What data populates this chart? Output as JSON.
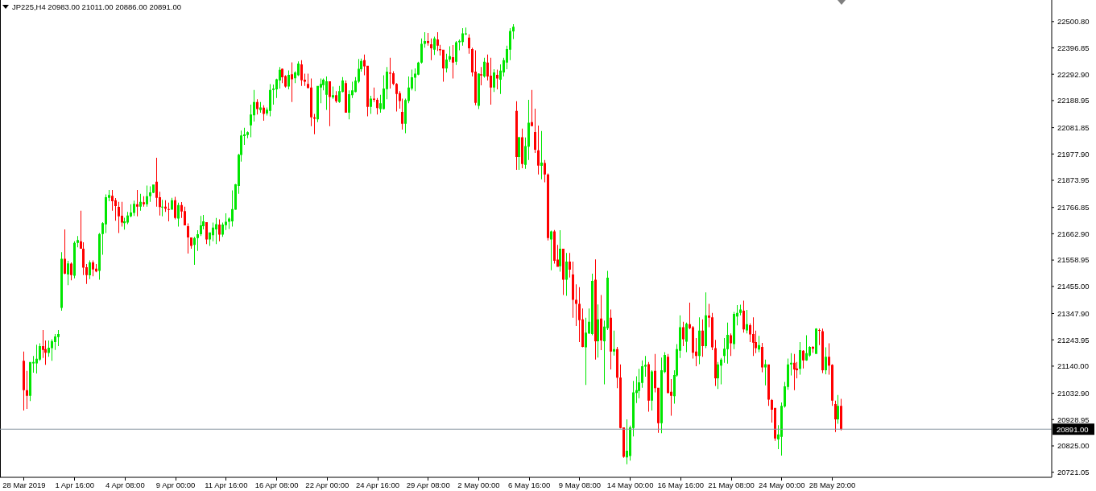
{
  "chart_data": {
    "type": "candlestick",
    "title": "JP225,H4 20983.00 21011.00 20886.00 20891.00",
    "categories": [
      "28 Mar 2019",
      null,
      null,
      null,
      null,
      null,
      null,
      null,
      null,
      null,
      null,
      null,
      null,
      null,
      null,
      null,
      "1 Apr 16:00",
      null,
      null,
      null,
      null,
      null,
      null,
      null,
      null,
      null,
      null,
      null,
      null,
      null,
      null,
      null,
      "4 Apr 08:00",
      null,
      null,
      null,
      null,
      null,
      null,
      null,
      null,
      null,
      null,
      null,
      null,
      null,
      null,
      null,
      "9 Apr 00:00",
      null,
      null,
      null,
      null,
      null,
      null,
      null,
      null,
      null,
      null,
      null,
      null,
      null,
      null,
      null,
      "11 Apr 16:00",
      null,
      null,
      null,
      null,
      null,
      null,
      null,
      null,
      null,
      null,
      null,
      null,
      null,
      null,
      null,
      "16 Apr 08:00",
      null,
      null,
      null,
      null,
      null,
      null,
      null,
      null,
      null,
      null,
      null,
      null,
      null,
      null,
      null,
      "22 Apr 00:00",
      null,
      null,
      null,
      null,
      null,
      null,
      null,
      null,
      null,
      null,
      null,
      null,
      null,
      null,
      null,
      "24 Apr 16:00",
      null,
      null,
      null,
      null,
      null,
      null,
      null,
      null,
      null,
      null,
      null,
      null,
      null,
      null,
      null,
      "29 Apr 08:00",
      null,
      null,
      null,
      null,
      null,
      null,
      null,
      null,
      null,
      null,
      null,
      null,
      null,
      null,
      null,
      "2 May 00:00",
      null,
      null,
      null,
      null,
      null,
      null,
      null,
      null,
      null,
      null,
      null,
      null,
      null,
      null,
      null,
      "6 May 16:00",
      null,
      null,
      null,
      null,
      null,
      null,
      null,
      null,
      null,
      null,
      null,
      null,
      null,
      null,
      null,
      "9 May 08:00",
      null,
      null,
      null,
      null,
      null,
      null,
      null,
      null,
      null,
      null,
      null,
      null,
      null,
      null,
      null,
      "14 May 00:00",
      null,
      null,
      null,
      null,
      null,
      null,
      null,
      null,
      null,
      null,
      null,
      null,
      null,
      null,
      null,
      "16 May 16:00",
      null,
      null,
      null,
      null,
      null,
      null,
      null,
      null,
      null,
      null,
      null,
      null,
      null,
      null,
      null,
      "21 May 08:00",
      null,
      null,
      null,
      null,
      null,
      null,
      null,
      null,
      null,
      null,
      null,
      null,
      null,
      null,
      null,
      "24 May 00:00",
      null,
      null,
      null,
      null,
      null,
      null,
      null,
      null,
      null,
      null,
      null,
      null,
      null,
      null,
      null,
      "28 May 20:00",
      null,
      null,
      null,
      null,
      null,
      null,
      null,
      null,
      null,
      null,
      null,
      null,
      null,
      null,
      null,
      null,
      null,
      null,
      null,
      null,
      null,
      null,
      null,
      null,
      null,
      null,
      null,
      null,
      null,
      null,
      null,
      null,
      null,
      null,
      null,
      null,
      null,
      null,
      null,
      null,
      null,
      null,
      null,
      null,
      null,
      null,
      null,
      null,
      null,
      null,
      null,
      null,
      null,
      null,
      null,
      null,
      null,
      null,
      null,
      null,
      null,
      null,
      null,
      null,
      null,
      null,
      null,
      null,
      null
    ],
    "ohlc": [
      [
        21161,
        21198,
        20965,
        21045
      ],
      [
        21045,
        21121,
        20971,
        21023
      ],
      [
        21023,
        21156,
        21002,
        21156
      ],
      [
        21151,
        21180,
        21114,
        21156
      ],
      [
        21151,
        21225,
        21111,
        21169
      ],
      [
        21166,
        21230,
        21161,
        21219
      ],
      [
        21219,
        21283,
        21172,
        21204
      ],
      [
        21207,
        21241,
        21145,
        21193
      ],
      [
        21192,
        21241,
        21177,
        21213
      ],
      [
        21211,
        21246,
        21161,
        21239
      ],
      [
        21235,
        21267,
        21204,
        21257
      ],
      [
        21255,
        21283,
        21219,
        21267
      ],
      [
        21370,
        21590,
        21359,
        21564
      ],
      [
        21564,
        21680,
        21503,
        21505
      ],
      [
        21502,
        21556,
        21460,
        21546
      ],
      [
        21545,
        21550,
        21479,
        21500
      ],
      [
        21497,
        21633,
        21487,
        21627
      ],
      [
        21627,
        21654,
        21609,
        21638
      ],
      [
        21633,
        21754,
        21604,
        21604
      ],
      [
        21604,
        21629,
        21500,
        21529
      ],
      [
        21531,
        21543,
        21465,
        21500
      ],
      [
        21499,
        21558,
        21484,
        21550
      ],
      [
        21550,
        21558,
        21495,
        21522
      ],
      [
        21525,
        21543,
        21511,
        21514
      ],
      [
        21516,
        21666,
        21481,
        21662
      ],
      [
        21662,
        21709,
        21580,
        21705
      ],
      [
        21700,
        21818,
        21666,
        21807
      ],
      [
        21805,
        21836,
        21791,
        21816
      ],
      [
        21813,
        21836,
        21754,
        21791
      ],
      [
        21795,
        21804,
        21714,
        21772
      ],
      [
        21769,
        21789,
        21666,
        21732
      ],
      [
        21734,
        21789,
        21691,
        21707
      ],
      [
        21705,
        21726,
        21679,
        21712
      ],
      [
        21707,
        21749,
        21701,
        21735
      ],
      [
        21732,
        21779,
        21728,
        21747
      ],
      [
        21745,
        21794,
        21733,
        21781
      ],
      [
        21779,
        21836,
        21732,
        21770
      ],
      [
        21770,
        21821,
        21754,
        21789
      ],
      [
        21787,
        21811,
        21770,
        21779
      ],
      [
        21779,
        21853,
        21770,
        21811
      ],
      [
        21811,
        21850,
        21789,
        21826
      ],
      [
        21825,
        21857,
        21823,
        21857
      ],
      [
        21868,
        21963,
        21770,
        21805
      ],
      [
        21807,
        21829,
        21735,
        21768
      ],
      [
        21767,
        21797,
        21732,
        21770
      ],
      [
        21770,
        21795,
        21749,
        21762
      ],
      [
        21760,
        21786,
        21712,
        21758
      ],
      [
        21758,
        21805,
        21758,
        21795
      ],
      [
        21795,
        21809,
        21720,
        21725
      ],
      [
        21723,
        21786,
        21691,
        21776
      ],
      [
        21776,
        21788,
        21725,
        21751
      ],
      [
        21752,
        21770,
        21696,
        21696
      ],
      [
        21693,
        21704,
        21585,
        21648
      ],
      [
        21648,
        21648,
        21604,
        21615
      ],
      [
        21619,
        21651,
        21540,
        21646
      ],
      [
        21646,
        21677,
        21595,
        21661
      ],
      [
        21661,
        21733,
        21654,
        21696
      ],
      [
        21693,
        21737,
        21680,
        21712
      ],
      [
        21709,
        21709,
        21622,
        21640
      ],
      [
        21640,
        21668,
        21615,
        21668
      ],
      [
        21657,
        21707,
        21633,
        21687
      ],
      [
        21680,
        21725,
        21622,
        21701
      ],
      [
        21699,
        21720,
        21633,
        21659
      ],
      [
        21659,
        21707,
        21651,
        21699
      ],
      [
        21697,
        21744,
        21678,
        21710
      ],
      [
        21710,
        21728,
        21682,
        21723
      ],
      [
        21712,
        21834,
        21691,
        21760
      ],
      [
        21758,
        21860,
        21757,
        21858
      ],
      [
        21852,
        21979,
        21821,
        21975
      ],
      [
        21974,
        22070,
        21948,
        22051
      ],
      [
        22049,
        22081,
        22014,
        22055
      ],
      [
        22053,
        22067,
        22040,
        22064
      ],
      [
        22091,
        22173,
        22044,
        22134
      ],
      [
        22131,
        22231,
        22106,
        22183
      ],
      [
        22183,
        22194,
        22134,
        22155
      ],
      [
        22151,
        22183,
        22141,
        22162
      ],
      [
        22161,
        22170,
        22109,
        22136
      ],
      [
        22138,
        22162,
        22130,
        22153
      ],
      [
        22148,
        22254,
        22127,
        22231
      ],
      [
        22231,
        22252,
        22173,
        22236
      ],
      [
        22233,
        22275,
        22199,
        22273
      ],
      [
        22268,
        22321,
        22236,
        22310
      ],
      [
        22314,
        22316,
        22258,
        22281
      ],
      [
        22286,
        22289,
        22240,
        22244
      ],
      [
        22244,
        22308,
        22233,
        22290
      ],
      [
        22293,
        22340,
        22183,
        22273
      ],
      [
        22277,
        22305,
        22258,
        22300
      ],
      [
        22289,
        22344,
        22286,
        22335
      ],
      [
        22332,
        22348,
        22247,
        22269
      ],
      [
        22271,
        22295,
        22247,
        22263
      ],
      [
        22255,
        22295,
        22236,
        22239
      ],
      [
        22240,
        22276,
        22088,
        22123
      ],
      [
        22123,
        22136,
        22056,
        22117
      ],
      [
        22115,
        22247,
        22104,
        22247
      ],
      [
        22240,
        22276,
        22178,
        22255
      ],
      [
        22250,
        22276,
        22229,
        22271
      ],
      [
        22212,
        22284,
        22152,
        22265
      ],
      [
        22265,
        22265,
        22088,
        22203
      ],
      [
        22201,
        22244,
        22196,
        22210
      ],
      [
        22210,
        22226,
        22180,
        22186
      ],
      [
        22183,
        22247,
        22180,
        22226
      ],
      [
        22223,
        22282,
        22221,
        22268
      ],
      [
        22258,
        22268,
        22141,
        22141
      ],
      [
        22141,
        22229,
        22115,
        22214
      ],
      [
        22210,
        22263,
        22199,
        22229
      ],
      [
        22223,
        22282,
        22221,
        22267
      ],
      [
        22263,
        22353,
        22258,
        22314
      ],
      [
        22313,
        22355,
        22303,
        22345
      ],
      [
        22348,
        22371,
        22289,
        22324
      ],
      [
        22326,
        22326,
        22127,
        22164
      ],
      [
        22164,
        22208,
        22136,
        22197
      ],
      [
        22197,
        22240,
        22183,
        22192
      ],
      [
        22192,
        22199,
        22134,
        22159
      ],
      [
        22155,
        22212,
        22141,
        22178
      ],
      [
        22155,
        22289,
        22154,
        22236
      ],
      [
        22234,
        22321,
        22194,
        22303
      ],
      [
        22299,
        22358,
        22236,
        22295
      ],
      [
        22297,
        22305,
        22250,
        22255
      ],
      [
        22255,
        22258,
        22146,
        22215
      ],
      [
        22218,
        22226,
        22157,
        22187
      ],
      [
        22144,
        22197,
        22074,
        22097
      ],
      [
        22097,
        22197,
        22060,
        22191
      ],
      [
        22187,
        22284,
        22178,
        22240
      ],
      [
        22236,
        22311,
        22229,
        22281
      ],
      [
        22279,
        22316,
        22226,
        22295
      ],
      [
        22291,
        22342,
        22289,
        22339
      ],
      [
        22339,
        22434,
        22335,
        22413
      ],
      [
        22413,
        22459,
        22398,
        22424
      ],
      [
        22424,
        22456,
        22406,
        22416
      ],
      [
        22411,
        22434,
        22348,
        22395
      ],
      [
        22390,
        22441,
        22369,
        22434
      ],
      [
        22430,
        22459,
        22385,
        22406
      ],
      [
        22392,
        22409,
        22367,
        22387
      ],
      [
        22390,
        22390,
        22263,
        22316
      ],
      [
        22316,
        22374,
        22300,
        22351
      ],
      [
        22351,
        22403,
        22342,
        22364
      ],
      [
        22360,
        22408,
        22276,
        22339
      ],
      [
        22342,
        22424,
        22329,
        22419
      ],
      [
        22419,
        22430,
        22387,
        22425
      ],
      [
        22420,
        22475,
        22406,
        22454
      ],
      [
        22450,
        22477,
        22448,
        22454
      ],
      [
        22437,
        22451,
        22374,
        22395
      ],
      [
        22392,
        22398,
        22284,
        22300
      ],
      [
        22303,
        22387,
        22170,
        22180
      ],
      [
        22168,
        22297,
        22155,
        22295
      ],
      [
        22293,
        22321,
        22249,
        22288
      ],
      [
        22284,
        22358,
        22279,
        22342
      ],
      [
        22339,
        22371,
        22268,
        22284
      ],
      [
        22287,
        22358,
        22173,
        22240
      ],
      [
        22240,
        22313,
        22223,
        22300
      ],
      [
        22290,
        22311,
        22233,
        22276
      ],
      [
        22271,
        22332,
        22215,
        22307
      ],
      [
        22300,
        22358,
        22284,
        22348
      ],
      [
        22339,
        22406,
        22313,
        22392
      ],
      [
        22390,
        22475,
        22348,
        22464
      ],
      [
        22462,
        22491,
        22432,
        22480
      ],
      [
        22148,
        22186,
        21915,
        21966
      ],
      [
        21966,
        22046,
        21915,
        22044
      ],
      [
        22044,
        22078,
        21922,
        21938
      ],
      [
        21935,
        22043,
        21919,
        22009
      ],
      [
        22007,
        22192,
        21954,
        22101
      ],
      [
        22104,
        22231,
        22088,
        22088
      ],
      [
        22065,
        22157,
        21982,
        21995
      ],
      [
        21992,
        22090,
        21897,
        21932
      ],
      [
        21931,
        22069,
        21878,
        21944
      ],
      [
        21942,
        21954,
        21866,
        21897
      ],
      [
        21897,
        21901,
        21636,
        21646
      ],
      [
        21640,
        21675,
        21519,
        21672
      ],
      [
        21672,
        21678,
        21545,
        21556
      ],
      [
        21561,
        21619,
        21532,
        21532
      ],
      [
        21535,
        21677,
        21513,
        21604
      ],
      [
        21604,
        21604,
        21421,
        21481
      ],
      [
        21481,
        21587,
        21418,
        21553
      ],
      [
        21553,
        21587,
        21490,
        21521
      ],
      [
        21502,
        21553,
        21331,
        21402
      ],
      [
        21402,
        21463,
        21299,
        21386
      ],
      [
        21386,
        21452,
        21235,
        21322
      ],
      [
        21325,
        21368,
        21214,
        21216
      ],
      [
        21214,
        21331,
        21066,
        21272
      ],
      [
        21269,
        21368,
        21267,
        21315
      ],
      [
        21267,
        21505,
        21262,
        21477
      ],
      [
        21481,
        21562,
        21166,
        21238
      ],
      [
        21238,
        21384,
        21174,
        21325
      ],
      [
        21328,
        21421,
        21203,
        21241
      ],
      [
        21238,
        21320,
        21068,
        21296
      ],
      [
        21290,
        21516,
        21283,
        21489
      ],
      [
        21331,
        21364,
        21127,
        21198
      ],
      [
        21198,
        21280,
        21182,
        21207
      ],
      [
        21207,
        21216,
        21053,
        21094
      ],
      [
        21095,
        21147,
        20894,
        20896
      ],
      [
        20898,
        20898,
        20778,
        20782
      ],
      [
        20780,
        20930,
        20753,
        20806
      ],
      [
        20785,
        20905,
        20767,
        20898
      ],
      [
        20896,
        21082,
        20862,
        21036
      ],
      [
        21034,
        21100,
        20994,
        21045
      ],
      [
        21042,
        21129,
        21013,
        21076
      ],
      [
        21074,
        21163,
        21055,
        21140
      ],
      [
        21138,
        21180,
        21098,
        21145
      ],
      [
        21148,
        21156,
        20960,
        21004
      ],
      [
        21004,
        21124,
        20965,
        21119
      ],
      [
        21121,
        21188,
        21036,
        21053
      ],
      [
        21055,
        21055,
        20877,
        20915
      ],
      [
        20915,
        21174,
        20875,
        21124
      ],
      [
        21117,
        21195,
        21113,
        21184
      ],
      [
        21177,
        21188,
        21032,
        21034
      ],
      [
        21039,
        21089,
        20944,
        21023
      ],
      [
        21021,
        21124,
        20992,
        21105
      ],
      [
        21103,
        21227,
        21098,
        21207
      ],
      [
        21201,
        21341,
        21172,
        21294
      ],
      [
        21294,
        21315,
        21219,
        21246
      ],
      [
        21237,
        21312,
        21195,
        21307
      ],
      [
        21306,
        21391,
        21286,
        21290
      ],
      [
        21294,
        21299,
        21170,
        21193
      ],
      [
        21198,
        21251,
        21140,
        21180
      ],
      [
        21180,
        21333,
        21148,
        21280
      ],
      [
        21280,
        21325,
        21177,
        21219
      ],
      [
        21219,
        21431,
        21211,
        21341
      ],
      [
        21340,
        21386,
        21294,
        21331
      ],
      [
        21333,
        21350,
        21203,
        21214
      ],
      [
        21211,
        21244,
        21062,
        21092
      ],
      [
        21092,
        21156,
        21050,
        21147
      ],
      [
        21142,
        21172,
        21068,
        21166
      ],
      [
        21180,
        21251,
        21153,
        21209
      ],
      [
        21207,
        21312,
        21150,
        21264
      ],
      [
        21262,
        21269,
        21180,
        21230
      ],
      [
        21227,
        21354,
        21207,
        21346
      ],
      [
        21336,
        21381,
        21301,
        21350
      ],
      [
        21350,
        21383,
        21341,
        21364
      ],
      [
        21359,
        21399,
        21272,
        21285
      ],
      [
        21281,
        21362,
        21269,
        21306
      ],
      [
        21302,
        21309,
        21235,
        21265
      ],
      [
        21267,
        21333,
        21180,
        21233
      ],
      [
        21235,
        21280,
        21191,
        21211
      ],
      [
        21206,
        21260,
        21195,
        21223
      ],
      [
        21216,
        21232,
        21116,
        21135
      ],
      [
        21135,
        21166,
        21064,
        21148
      ],
      [
        21147,
        21147,
        20983,
        21008
      ],
      [
        21006,
        21010,
        20917,
        20968
      ],
      [
        20975,
        20975,
        20845,
        20854
      ],
      [
        20851,
        20907,
        20812,
        20870
      ],
      [
        20861,
        20997,
        20787,
        20983
      ],
      [
        20981,
        21078,
        20976,
        21060
      ],
      [
        21058,
        21170,
        21047,
        21147
      ],
      [
        21147,
        21191,
        21103,
        21153
      ],
      [
        21153,
        21188,
        21045,
        21127
      ],
      [
        21131,
        21156,
        21092,
        21124
      ],
      [
        21129,
        21235,
        21106,
        21203
      ],
      [
        21201,
        21203,
        21131,
        21163
      ],
      [
        21163,
        21262,
        21161,
        21191
      ],
      [
        21182,
        21219,
        21177,
        21216
      ],
      [
        21216,
        21219,
        21193,
        21209
      ],
      [
        21188,
        21290,
        21188,
        21288
      ],
      [
        21283,
        21288,
        21223,
        21280
      ],
      [
        21278,
        21288,
        21113,
        21124
      ],
      [
        21124,
        21214,
        21108,
        21177
      ],
      [
        21177,
        21230,
        21106,
        21142
      ],
      [
        21145,
        21148,
        20983,
        21004
      ],
      [
        20990,
        21004,
        20880,
        20930
      ],
      [
        20930,
        21026,
        20912,
        20983
      ],
      [
        20983,
        21011,
        20886,
        20891
      ],
      null,
      null,
      null,
      null,
      null,
      null,
      null,
      null,
      null,
      null,
      null,
      null,
      null,
      null,
      null,
      null,
      null,
      null,
      null,
      null,
      null,
      null,
      null,
      null,
      null,
      null,
      null,
      null,
      null,
      null,
      null,
      null,
      null,
      null,
      null,
      null,
      null,
      null,
      null,
      null,
      null,
      null,
      null,
      null,
      null,
      null,
      null,
      null,
      null,
      null,
      null,
      null,
      null,
      null,
      null,
      null,
      null,
      null,
      null,
      null,
      null,
      null,
      null,
      null,
      null,
      null
    ],
    "colors": [
      "#ff0000",
      "#ff0000",
      "#00e600",
      "#00e600",
      "#00e600",
      "#00e600",
      "#ff0000",
      "#ff0000",
      "#00e600",
      "#00e600",
      "#00e600",
      "#00e600",
      "#00e600",
      "#ff0000",
      "#00e600",
      "#ff0000",
      "#00e600",
      "#00e600",
      "#ff0000",
      "#ff0000",
      "#ff0000",
      "#00e600",
      "#ff0000",
      "#ff0000",
      "#00e600",
      "#00e600",
      "#00e600",
      "#00e600",
      "#ff0000",
      "#ff0000",
      "#ff0000",
      "#ff0000",
      "#00e600",
      "#00e600",
      "#00e600",
      "#00e600",
      "#ff0000",
      "#00e600",
      "#ff0000",
      "#00e600",
      "#00e600",
      "#00e600",
      "#ff0000",
      "#ff0000",
      "#00e600",
      "#ff0000",
      "#ff0000",
      "#00e600",
      "#ff0000",
      "#00e600",
      "#ff0000",
      "#ff0000",
      "#ff0000",
      "#ff0000",
      "#00e600",
      "#00e600",
      "#00e600",
      "#00e600",
      "#ff0000",
      "#00e600",
      "#00e600",
      "#00e600",
      "#ff0000",
      "#00e600",
      "#00e600",
      "#00e600",
      "#00e600",
      "#00e600",
      "#00e600",
      "#00e600",
      "#00e600",
      "#00e600",
      "#00e600",
      "#00e600",
      "#ff0000",
      "#00e600",
      "#ff0000",
      "#00e600",
      "#00e600",
      "#00e600",
      "#00e600",
      "#00e600",
      "#ff0000",
      "#ff0000",
      "#00e600",
      "#ff0000",
      "#00e600",
      "#00e600",
      "#ff0000",
      "#ff0000",
      "#ff0000",
      "#ff0000",
      "#ff0000",
      "#00e600",
      "#00e600",
      "#00e600",
      "#00e600",
      "#ff0000",
      "#00e600",
      "#ff0000",
      "#00e600",
      "#00e600",
      "#ff0000",
      "#00e600",
      "#00e600",
      "#00e600",
      "#00e600",
      "#00e600",
      "#ff0000",
      "#ff0000",
      "#00e600",
      "#ff0000",
      "#ff0000",
      "#00e600",
      "#00e600",
      "#00e600",
      "#ff0000",
      "#ff0000",
      "#ff0000",
      "#ff0000",
      "#ff0000",
      "#00e600",
      "#00e600",
      "#00e600",
      "#00e600",
      "#00e600",
      "#00e600",
      "#00e600",
      "#ff0000",
      "#ff0000",
      "#00e600",
      "#ff0000",
      "#ff0000",
      "#ff0000",
      "#00e600",
      "#00e600",
      "#ff0000",
      "#00e600",
      "#00e600",
      "#00e600",
      "#00e600",
      "#ff0000",
      "#ff0000",
      "#ff0000",
      "#00e600",
      "#ff0000",
      "#00e600",
      "#ff0000",
      "#ff0000",
      "#00e600",
      "#ff0000",
      "#00e600",
      "#00e600",
      "#00e600",
      "#00e600",
      "#00e600",
      "#ff0000",
      "#00e600",
      "#ff0000",
      "#00e600",
      "#00e600",
      "#ff0000",
      "#ff0000",
      "#ff0000",
      "#00e600",
      "#ff0000",
      "#ff0000",
      "#00e600",
      "#ff0000",
      "#ff0000",
      "#00e600",
      "#ff0000",
      "#00e600",
      "#ff0000",
      "#ff0000",
      "#ff0000",
      "#ff0000",
      "#ff0000",
      "#00e600",
      "#00e600",
      "#00e600",
      "#ff0000",
      "#00e600",
      "#ff0000",
      "#00e600",
      "#00e600",
      "#ff0000",
      "#00e600",
      "#ff0000",
      "#ff0000",
      "#ff0000",
      "#00e600",
      "#00e600",
      "#00e600",
      "#00e600",
      "#00e600",
      "#00e600",
      "#00e600",
      "#ff0000",
      "#00e600",
      "#ff0000",
      "#ff0000",
      "#00e600",
      "#00e600",
      "#ff0000",
      "#ff0000",
      "#00e600",
      "#00e600",
      "#00e600",
      "#ff0000",
      "#00e600",
      "#ff0000",
      "#ff0000",
      "#ff0000",
      "#00e600",
      "#ff0000",
      "#00e600",
      "#ff0000",
      "#ff0000",
      "#ff0000",
      "#00e600",
      "#00e600",
      "#00e600",
      "#00e600",
      "#ff0000",
      "#00e600",
      "#00e600",
      "#00e600",
      "#ff0000",
      "#00e600",
      "#ff0000",
      "#ff0000",
      "#ff0000",
      "#00e600",
      "#ff0000",
      "#00e600",
      "#ff0000",
      "#ff0000",
      "#ff0000",
      "#00e600",
      "#00e600",
      "#00e600",
      "#00e600",
      "#00e600",
      "#ff0000",
      "#ff0000",
      "#00e600",
      "#ff0000",
      "#00e600",
      "#00e600",
      "#ff0000",
      "#00e600",
      "#ff0000",
      "#ff0000",
      "#00e600",
      "#ff0000",
      "#ff0000",
      "#ff0000",
      "#00e600",
      "#ff0000",
      null,
      null,
      null,
      null,
      null,
      null,
      null,
      null,
      null,
      null,
      null,
      null,
      null,
      null,
      null,
      null,
      null,
      null,
      null,
      null,
      null,
      null,
      null,
      null,
      null,
      null,
      null,
      null,
      null,
      null,
      null,
      null,
      null,
      null,
      null,
      null,
      null,
      null,
      null,
      null,
      null,
      null,
      null,
      null,
      null,
      null,
      null,
      null,
      null,
      null,
      null,
      null,
      null,
      null,
      null,
      null,
      null,
      null,
      null,
      null,
      null,
      null,
      null,
      null,
      null,
      null
    ],
    "ylim": [
      20701,
      22586
    ],
    "yticks": [
      {
        "value": 20721.05,
        "label": "20721.05"
      },
      {
        "value": 20825,
        "label": "20825.00"
      },
      {
        "value": 20928.95,
        "label": "20928.95"
      },
      {
        "value": 21032.9,
        "label": "21032.90"
      },
      {
        "value": 21140,
        "label": "21140.00"
      },
      {
        "value": 21243.95,
        "label": "21243.95"
      },
      {
        "value": 21347.9,
        "label": "21347.90"
      },
      {
        "value": 21455,
        "label": "21455.00"
      },
      {
        "value": 21558.95,
        "label": "21558.95"
      },
      {
        "value": 21662.9,
        "label": "21662.90"
      },
      {
        "value": 21766.85,
        "label": "21766.85"
      },
      {
        "value": 21873.95,
        "label": "21873.95"
      },
      {
        "value": 21977.9,
        "label": "21977.90"
      },
      {
        "value": 22081.85,
        "label": "22081.85"
      },
      {
        "value": 22188.95,
        "label": "22188.95"
      },
      {
        "value": 22292.9,
        "label": "22292.90"
      },
      {
        "value": 22396.85,
        "label": "22396.85"
      },
      {
        "value": 22500.8,
        "label": "22500.80"
      }
    ],
    "ref_lines": [
      {
        "axis": "y",
        "value": 20891,
        "label": "20891.00",
        "color": "#8a97a3"
      }
    ]
  }
}
